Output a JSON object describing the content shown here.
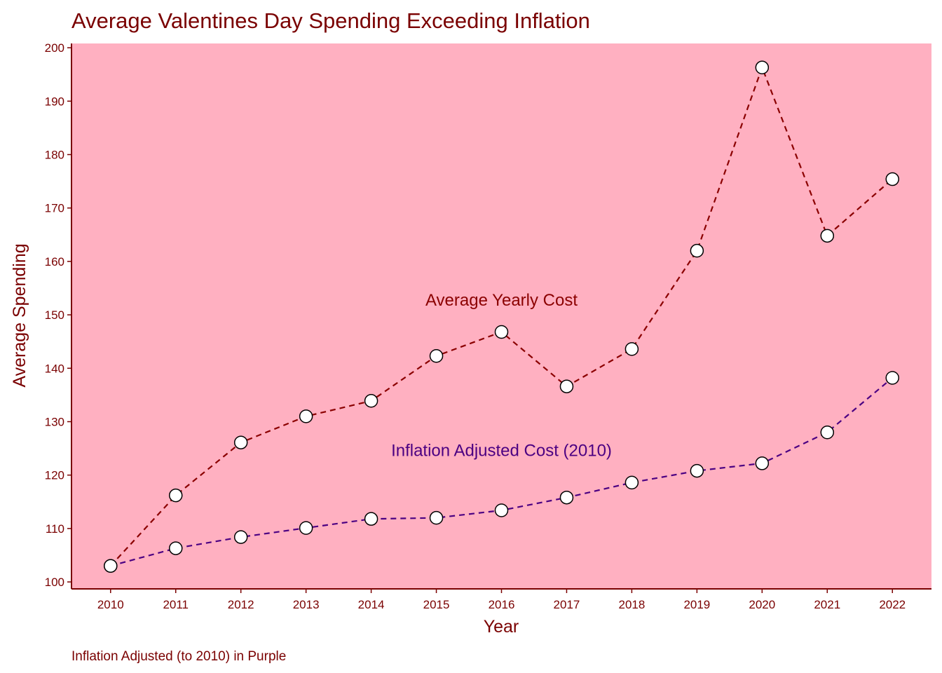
{
  "chart_data": {
    "type": "line",
    "title": "Average Valentines Day Spending Exceeding Inflation",
    "xlabel": "Year",
    "ylabel": "Average Spending",
    "caption": "Inflation Adjusted (to 2010) in Purple",
    "x": [
      2010,
      2011,
      2012,
      2013,
      2014,
      2015,
      2016,
      2017,
      2018,
      2019,
      2020,
      2021,
      2022
    ],
    "xlim": [
      2009.4,
      2022.6
    ],
    "ylim": [
      98.7,
      200.8
    ],
    "yticks": [
      100,
      110,
      120,
      130,
      140,
      150,
      160,
      170,
      180,
      190,
      200
    ],
    "grid": false,
    "legend": "none",
    "series": [
      {
        "values": [
          103.0,
          116.2,
          126.1,
          131.0,
          133.9,
          142.3,
          146.8,
          136.6,
          143.6,
          162.0,
          196.3,
          164.8,
          175.4
        ],
        "color": "#8b0000",
        "line_style": "dashed"
      },
      {
        "values": [
          103.0,
          106.3,
          108.4,
          110.1,
          111.8,
          112.0,
          113.4,
          115.8,
          118.6,
          120.8,
          122.2,
          128.0,
          138.2
        ],
        "color": "#4b0082",
        "line_style": "dashed"
      }
    ],
    "annotations": [
      {
        "text": "Average Yearly Cost",
        "x": 2016,
        "y": 151.7,
        "color": "#8b0000"
      },
      {
        "text": "Inflation Adjusted Cost (2010)",
        "x": 2016,
        "y": 123.6,
        "color": "#4b0082"
      }
    ],
    "panel_color": "#ffb0c1",
    "marker_fill": "#ffffff",
    "marker_stroke": "#000000",
    "axis_color": "#7a0000"
  }
}
